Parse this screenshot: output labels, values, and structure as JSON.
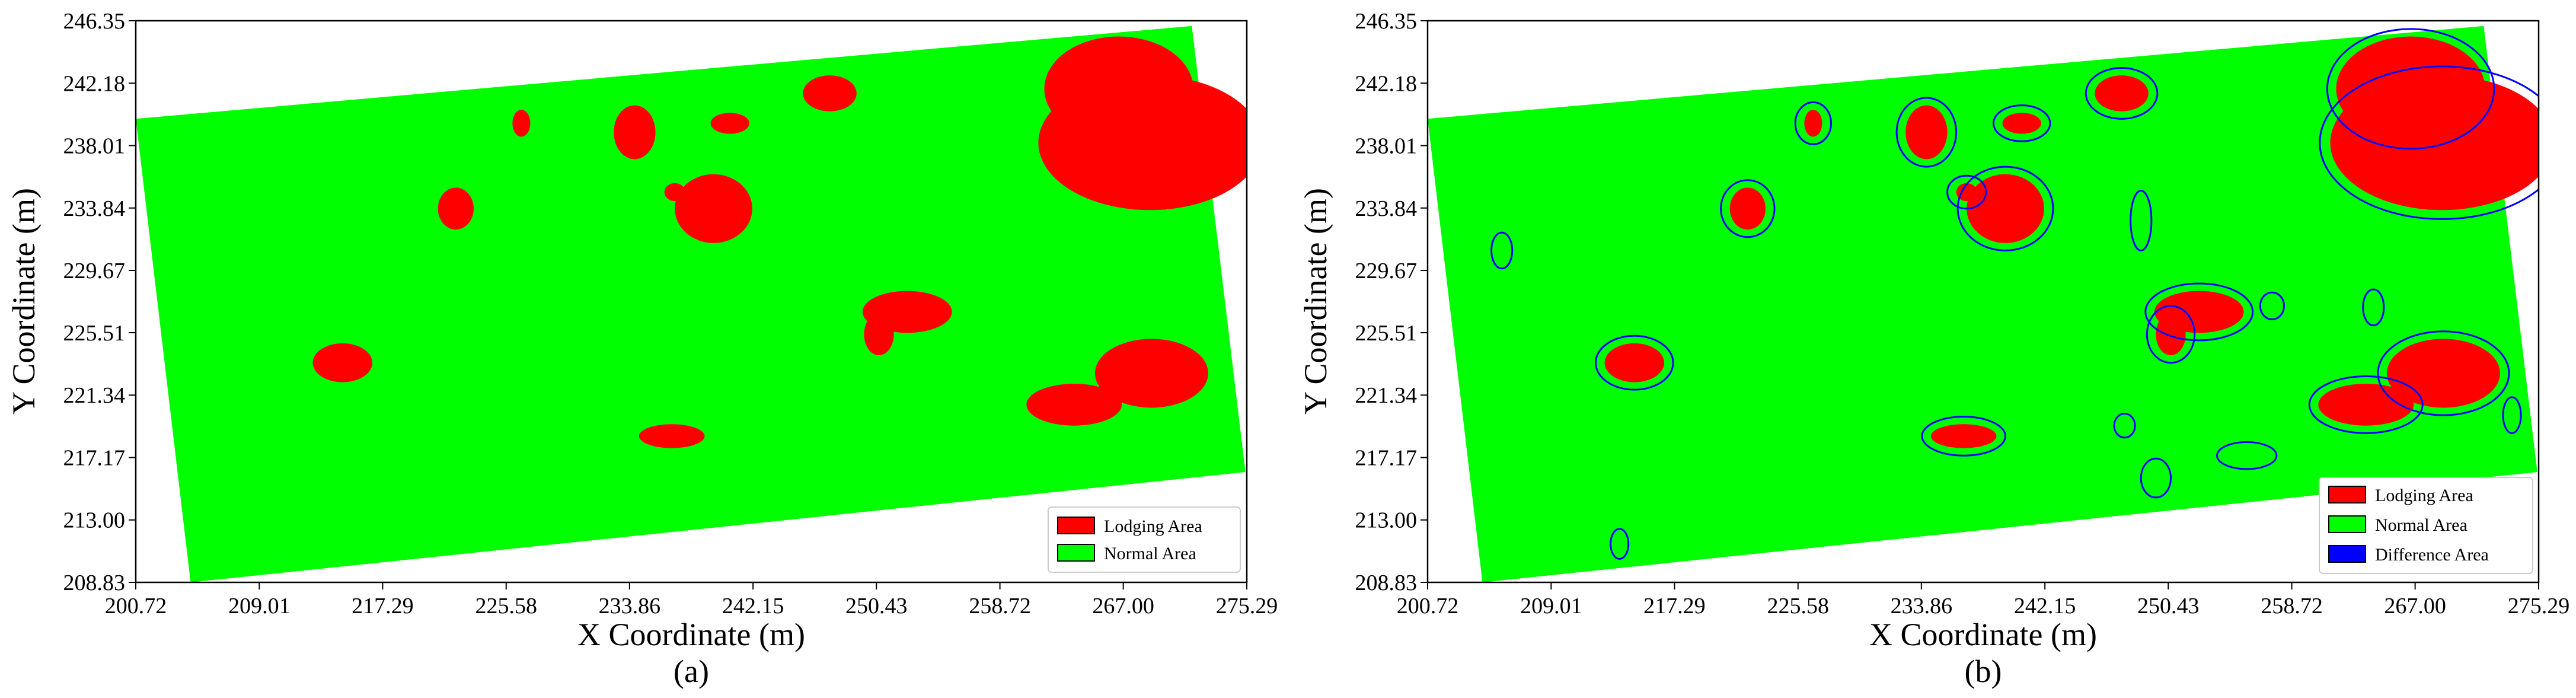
{
  "colors": {
    "lodging": "#ff0000",
    "normal": "#00ff00",
    "difference": "#0000ff"
  },
  "chart_data": [
    {
      "type": "map",
      "panel_label": "(a)",
      "xlabel": "X Coordinate (m)",
      "ylabel": "Y Coordinate (m)",
      "xlim": [
        200.72,
        275.29
      ],
      "ylim": [
        208.83,
        246.35
      ],
      "xticks": [
        "200.72",
        "209.01",
        "217.29",
        "225.58",
        "233.86",
        "242.15",
        "250.43",
        "258.72",
        "267.00",
        "275.29"
      ],
      "yticks": [
        "208.83",
        "213.00",
        "217.17",
        "221.34",
        "225.51",
        "229.67",
        "233.84",
        "238.01",
        "242.18",
        "246.35"
      ],
      "legend": [
        {
          "label": "Lodging Area",
          "color": "#ff0000"
        },
        {
          "label": "Normal Area",
          "color": "#00ff00"
        }
      ],
      "legend_position": "lower-right",
      "field_polygon": [
        [
          200.72,
          239.8
        ],
        [
          271.6,
          246.0
        ],
        [
          275.2,
          216.2
        ],
        [
          204.4,
          208.83
        ]
      ],
      "lodging_regions": [
        {
          "center": [
            268.8,
            238.2
          ],
          "rx": 7.5,
          "ry": 4.5
        },
        {
          "center": [
            266.7,
            241.8
          ],
          "rx": 5.0,
          "ry": 3.5
        },
        {
          "center": [
            268.9,
            222.8
          ],
          "rx": 3.8,
          "ry": 2.3
        },
        {
          "center": [
            263.7,
            220.7
          ],
          "rx": 3.2,
          "ry": 1.4
        },
        {
          "center": [
            239.5,
            233.8
          ],
          "rx": 2.6,
          "ry": 2.3
        },
        {
          "center": [
            234.2,
            238.9
          ],
          "rx": 1.4,
          "ry": 1.8
        },
        {
          "center": [
            252.5,
            226.9
          ],
          "rx": 3.0,
          "ry": 1.4
        },
        {
          "center": [
            250.6,
            225.4
          ],
          "rx": 1.0,
          "ry": 1.4
        },
        {
          "center": [
            222.2,
            233.8
          ],
          "rx": 1.2,
          "ry": 1.4
        },
        {
          "center": [
            214.6,
            223.5
          ],
          "rx": 2.0,
          "ry": 1.3
        },
        {
          "center": [
            247.3,
            241.5
          ],
          "rx": 1.8,
          "ry": 1.2
        },
        {
          "center": [
            240.6,
            239.5
          ],
          "rx": 1.3,
          "ry": 0.7
        },
        {
          "center": [
            226.6,
            239.5
          ],
          "rx": 0.6,
          "ry": 0.9
        },
        {
          "center": [
            236.7,
            218.6
          ],
          "rx": 2.2,
          "ry": 0.8
        },
        {
          "center": [
            236.9,
            234.9
          ],
          "rx": 0.7,
          "ry": 0.6
        }
      ]
    },
    {
      "type": "map",
      "panel_label": "(b)",
      "xlabel": "X Coordinate (m)",
      "ylabel": "Y Coordinate (m)",
      "xlim": [
        200.72,
        275.29
      ],
      "ylim": [
        208.83,
        246.35
      ],
      "xticks": [
        "200.72",
        "209.01",
        "217.29",
        "225.58",
        "233.86",
        "242.15",
        "250.43",
        "258.72",
        "267.00",
        "275.29"
      ],
      "yticks": [
        "208.83",
        "213.00",
        "217.17",
        "221.34",
        "225.51",
        "229.67",
        "233.84",
        "238.01",
        "242.18",
        "246.35"
      ],
      "legend": [
        {
          "label": "Lodging Area",
          "color": "#ff0000"
        },
        {
          "label": "Normal Area",
          "color": "#00ff00"
        },
        {
          "label": "Difference Area",
          "color": "#0000ff"
        }
      ],
      "legend_position": "lower-right",
      "field_polygon": [
        [
          200.72,
          239.8
        ],
        [
          271.6,
          246.0
        ],
        [
          275.2,
          216.2
        ],
        [
          204.4,
          208.83
        ]
      ],
      "lodging_regions": [
        {
          "center": [
            268.8,
            238.2
          ],
          "rx": 7.5,
          "ry": 4.5
        },
        {
          "center": [
            266.7,
            241.8
          ],
          "rx": 5.0,
          "ry": 3.5
        },
        {
          "center": [
            268.9,
            222.8
          ],
          "rx": 3.8,
          "ry": 2.3
        },
        {
          "center": [
            263.7,
            220.7
          ],
          "rx": 3.2,
          "ry": 1.4
        },
        {
          "center": [
            239.5,
            233.8
          ],
          "rx": 2.6,
          "ry": 2.3
        },
        {
          "center": [
            234.2,
            238.9
          ],
          "rx": 1.4,
          "ry": 1.8
        },
        {
          "center": [
            252.5,
            226.9
          ],
          "rx": 3.0,
          "ry": 1.4
        },
        {
          "center": [
            250.6,
            225.4
          ],
          "rx": 1.0,
          "ry": 1.4
        },
        {
          "center": [
            222.2,
            233.8
          ],
          "rx": 1.2,
          "ry": 1.4
        },
        {
          "center": [
            214.6,
            223.5
          ],
          "rx": 2.0,
          "ry": 1.3
        },
        {
          "center": [
            247.3,
            241.5
          ],
          "rx": 1.8,
          "ry": 1.2
        },
        {
          "center": [
            240.6,
            239.5
          ],
          "rx": 1.3,
          "ry": 0.7
        },
        {
          "center": [
            226.6,
            239.5
          ],
          "rx": 0.6,
          "ry": 0.9
        },
        {
          "center": [
            236.7,
            218.6
          ],
          "rx": 2.2,
          "ry": 0.8
        },
        {
          "center": [
            236.9,
            234.9
          ],
          "rx": 0.7,
          "ry": 0.6
        }
      ],
      "difference_regions": [
        {
          "center": [
            268.8,
            238.2
          ],
          "rx": 8.2,
          "ry": 5.1
        },
        {
          "center": [
            266.7,
            241.8
          ],
          "rx": 5.6,
          "ry": 4.0
        },
        {
          "center": [
            268.9,
            222.8
          ],
          "rx": 4.4,
          "ry": 2.8
        },
        {
          "center": [
            263.7,
            220.7
          ],
          "rx": 3.8,
          "ry": 1.9
        },
        {
          "center": [
            239.5,
            233.8
          ],
          "rx": 3.2,
          "ry": 2.8
        },
        {
          "center": [
            234.2,
            238.9
          ],
          "rx": 2.0,
          "ry": 2.3
        },
        {
          "center": [
            252.5,
            226.9
          ],
          "rx": 3.6,
          "ry": 1.9
        },
        {
          "center": [
            250.6,
            225.4
          ],
          "rx": 1.6,
          "ry": 1.9
        },
        {
          "center": [
            222.2,
            233.8
          ],
          "rx": 1.8,
          "ry": 1.9
        },
        {
          "center": [
            214.6,
            223.5
          ],
          "rx": 2.6,
          "ry": 1.8
        },
        {
          "center": [
            247.3,
            241.5
          ],
          "rx": 2.4,
          "ry": 1.7
        },
        {
          "center": [
            240.6,
            239.5
          ],
          "rx": 1.9,
          "ry": 1.2
        },
        {
          "center": [
            226.6,
            239.5
          ],
          "rx": 1.2,
          "ry": 1.4
        },
        {
          "center": [
            236.7,
            218.6
          ],
          "rx": 2.8,
          "ry": 1.3
        },
        {
          "center": [
            236.9,
            234.9
          ],
          "rx": 1.3,
          "ry": 1.1
        },
        {
          "center": [
            205.7,
            231.0
          ],
          "rx": 0.7,
          "ry": 1.2
        },
        {
          "center": [
            213.6,
            211.4
          ],
          "rx": 0.6,
          "ry": 1.0
        },
        {
          "center": [
            248.6,
            233.0
          ],
          "rx": 0.7,
          "ry": 2.0
        },
        {
          "center": [
            255.7,
            217.3
          ],
          "rx": 2.0,
          "ry": 0.9
        },
        {
          "center": [
            249.6,
            215.8
          ],
          "rx": 1.0,
          "ry": 1.3
        },
        {
          "center": [
            247.5,
            219.3
          ],
          "rx": 0.7,
          "ry": 0.8
        },
        {
          "center": [
            257.4,
            227.3
          ],
          "rx": 0.8,
          "ry": 0.9
        },
        {
          "center": [
            273.5,
            220.0
          ],
          "rx": 0.6,
          "ry": 1.2
        },
        {
          "center": [
            264.2,
            227.2
          ],
          "rx": 0.7,
          "ry": 1.2
        }
      ]
    }
  ]
}
